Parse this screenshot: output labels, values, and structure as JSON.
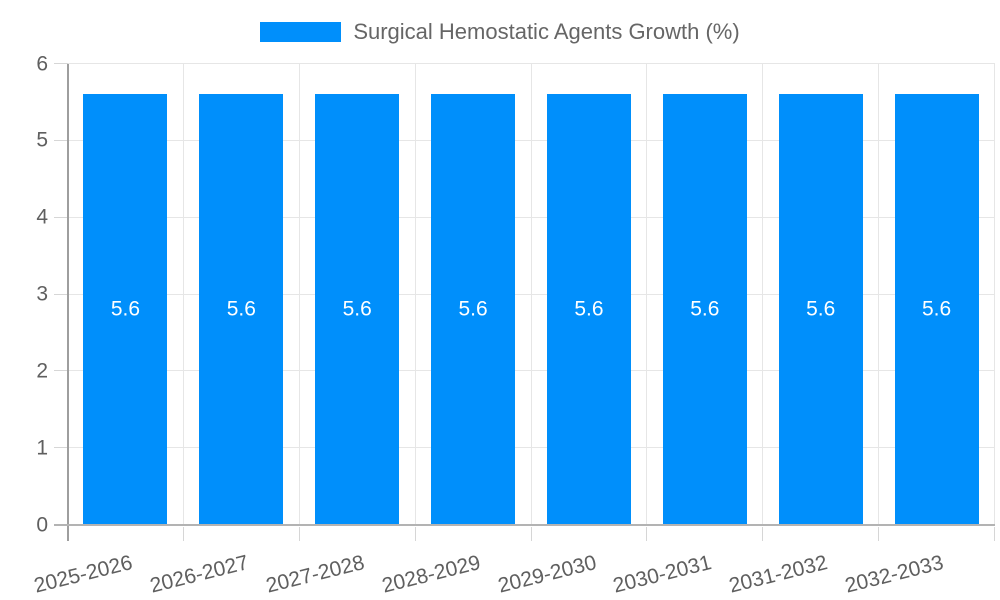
{
  "legend": {
    "label": "Surgical Hemostatic Agents Growth (%)"
  },
  "chart_data": {
    "type": "bar",
    "title": "Surgical Hemostatic Agents Growth (%)",
    "categories": [
      "2025-2026",
      "2026-2027",
      "2027-2028",
      "2028-2029",
      "2029-2030",
      "2030-2031",
      "2031-2032",
      "2032-2033"
    ],
    "series": [
      {
        "name": "Surgical Hemostatic Agents Growth (%)",
        "values": [
          5.6,
          5.6,
          5.6,
          5.6,
          5.6,
          5.6,
          5.6,
          5.6
        ]
      }
    ],
    "bar_value_labels": [
      "5.6",
      "5.6",
      "5.6",
      "5.6",
      "5.6",
      "5.6",
      "5.6",
      "5.6"
    ],
    "xlabel": "",
    "ylabel": "",
    "ylim": [
      0,
      6
    ],
    "yticks": [
      0,
      1,
      2,
      3,
      4,
      5,
      6
    ],
    "grid": true,
    "legend_position": "top-center",
    "colors": {
      "bar": "#008FFB",
      "bar_label": "#ffffff",
      "axis_text": "#5f5f5f",
      "legend_text": "#666666",
      "grid_line": "#e6e6e6",
      "tick_line": "#d6d6d6",
      "y_axis_line": "#9e9e9e",
      "x_axis_line": "#b3b3b3"
    }
  }
}
